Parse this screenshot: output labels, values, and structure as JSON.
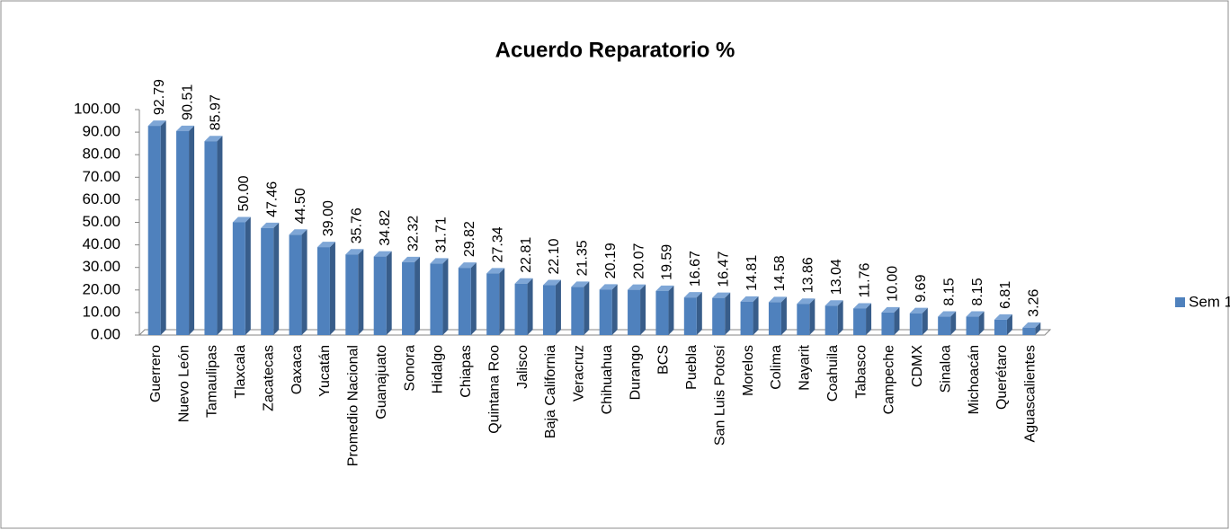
{
  "chart_data": {
    "type": "bar",
    "title": "Acuerdo Reparatorio %",
    "categories": [
      "Guerrero",
      "Nuevo León",
      "Tamaulipas",
      "Tlaxcala",
      "Zacatecas",
      "Oaxaca",
      "Yucatán",
      "Promedio Nacional",
      "Guanajuato",
      "Sonora",
      "Hidalgo",
      "Chiapas",
      "Quintana Roo",
      "Jalisco",
      "Baja California",
      "Veracruz",
      "Chihuahua",
      "Durango",
      "BCS",
      "Puebla",
      "San Luis Potosí",
      "Morelos",
      "Colima",
      "Nayarit",
      "Coahuila",
      "Tabasco",
      "Campeche",
      "CDMX",
      "Sinaloa",
      "Michoacán",
      "Querétaro",
      "Aguascalientes"
    ],
    "series": [
      {
        "name": "Sem 1",
        "color": "#4f81bd",
        "values": [
          92.79,
          90.51,
          85.97,
          50.0,
          47.46,
          44.5,
          39.0,
          35.76,
          34.82,
          32.32,
          31.71,
          29.82,
          27.34,
          22.81,
          22.1,
          21.35,
          20.19,
          20.07,
          19.59,
          16.67,
          16.47,
          14.81,
          14.58,
          13.86,
          13.04,
          11.76,
          10.0,
          9.69,
          8.15,
          8.15,
          6.81,
          3.26
        ],
        "value_labels": [
          "92.79",
          "90.51",
          "85.97",
          "50.00",
          "47.46",
          "44.50",
          "39.00",
          "35.76",
          "34.82",
          "32.32",
          "31.71",
          "29.82",
          "27.34",
          "22.81",
          "22.10",
          "21.35",
          "20.19",
          "20.07",
          "19.59",
          "16.67",
          "16.47",
          "14.81",
          "14.58",
          "13.86",
          "13.04",
          "11.76",
          "10.00",
          "9.69",
          "8.15",
          "8.15",
          "6.81",
          "3.26"
        ]
      }
    ],
    "ylim": [
      0,
      100
    ],
    "yticks": [
      {
        "value": 0,
        "label": "0.00"
      },
      {
        "value": 10,
        "label": "10.00"
      },
      {
        "value": 20,
        "label": "20.00"
      },
      {
        "value": 30,
        "label": "30.00"
      },
      {
        "value": 40,
        "label": "40.00"
      },
      {
        "value": 50,
        "label": "50.00"
      },
      {
        "value": 60,
        "label": "60.00"
      },
      {
        "value": 70,
        "label": "70.00"
      },
      {
        "value": 80,
        "label": "80.00"
      },
      {
        "value": 90,
        "label": "90.00"
      },
      {
        "value": 100,
        "label": "100.00"
      }
    ],
    "legend": "right"
  }
}
